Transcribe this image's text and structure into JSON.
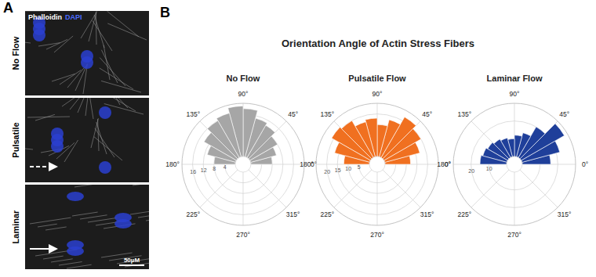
{
  "panel_a": {
    "label": "A",
    "stains": [
      {
        "name": "Phalloidin",
        "color": "#ffffff"
      },
      {
        "name": "DAPI",
        "color": "#4a6bff"
      }
    ],
    "rows": [
      "No Flow",
      "Pulsatile",
      "Laminar"
    ],
    "scale_bar": "50µM"
  },
  "panel_b": {
    "label": "B",
    "title": "Orientation Angle of Actin Stress Fibers"
  },
  "chart_data": [
    {
      "type": "polar_bar",
      "title": "No Flow",
      "bins": [
        0,
        15,
        30,
        45,
        60,
        75,
        90,
        105,
        120,
        135,
        150,
        165,
        180
      ],
      "values": [
        8,
        10,
        12,
        14,
        15,
        18,
        19,
        17,
        16,
        14,
        11,
        8
      ],
      "color": "#a6a6a6",
      "xlim": [
        0,
        360
      ],
      "xticks": [
        {
          "value": 0,
          "label": "0°"
        },
        {
          "value": 45,
          "label": "45°"
        },
        {
          "value": 90,
          "label": "90°"
        },
        {
          "value": 135,
          "label": "135°"
        },
        {
          "value": 180,
          "label": "180°"
        },
        {
          "value": 225,
          "label": "225°"
        },
        {
          "value": 270,
          "label": "270°"
        },
        {
          "value": 315,
          "label": "315°"
        }
      ],
      "ylim": [
        0,
        20
      ],
      "yticks": [
        4,
        8,
        12,
        16
      ],
      "grid": true
    },
    {
      "type": "polar_bar",
      "title": "Pulsatile Flow",
      "bins": [
        0,
        15,
        30,
        45,
        60,
        75,
        90,
        105,
        120,
        135,
        150,
        165,
        180
      ],
      "values": [
        12,
        17,
        20,
        22,
        18,
        15,
        18,
        17,
        20,
        21,
        17,
        12
      ],
      "color": "#f07020",
      "xlim": [
        0,
        360
      ],
      "xticks": [
        {
          "value": 0,
          "label": "0°"
        },
        {
          "value": 45,
          "label": "45°"
        },
        {
          "value": 90,
          "label": "90°"
        },
        {
          "value": 135,
          "label": "135°"
        },
        {
          "value": 180,
          "label": "180°"
        },
        {
          "value": 225,
          "label": "225°"
        },
        {
          "value": 270,
          "label": "270°"
        },
        {
          "value": 315,
          "label": "315°"
        }
      ],
      "ylim": [
        0,
        25
      ],
      "yticks": [
        5,
        10,
        15,
        20
      ],
      "grid": true
    },
    {
      "type": "polar_bar",
      "title": "Laminar Flow",
      "bins": [
        0,
        15,
        30,
        45,
        60,
        75,
        90,
        105,
        120,
        135,
        150,
        165,
        180
      ],
      "values": [
        16,
        22,
        28,
        20,
        14,
        12,
        10,
        11,
        12,
        13,
        14,
        15
      ],
      "color": "#1f3f9a",
      "xlim": [
        0,
        360
      ],
      "xticks": [
        {
          "value": 0,
          "label": "0°"
        },
        {
          "value": 45,
          "label": "45°"
        },
        {
          "value": 90,
          "label": "90°"
        },
        {
          "value": 135,
          "label": "135°"
        },
        {
          "value": 180,
          "label": "180°"
        },
        {
          "value": 225,
          "label": "225°"
        },
        {
          "value": 270,
          "label": "270°"
        },
        {
          "value": 315,
          "label": "315°"
        }
      ],
      "ylim": [
        0,
        30
      ],
      "yticks": [
        10,
        20
      ],
      "grid": true
    }
  ]
}
